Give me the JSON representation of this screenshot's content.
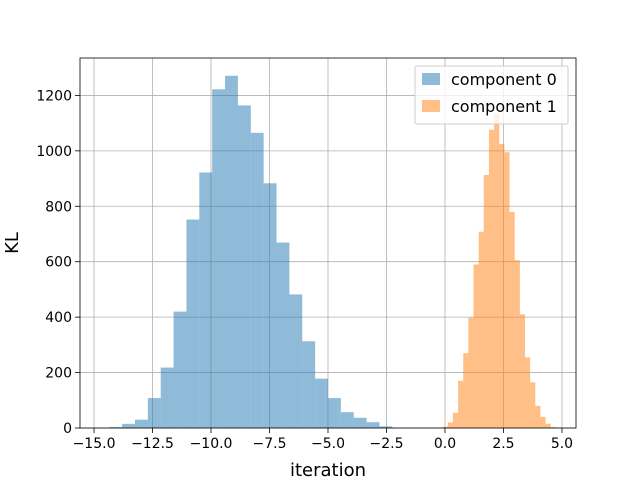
{
  "chart_data": {
    "type": "bar",
    "title": "",
    "xlabel": "iteration",
    "ylabel": "KL",
    "xlim": [
      -15.6,
      5.6
    ],
    "ylim": [
      0,
      1335
    ],
    "xticks": [
      -15.0,
      -12.5,
      -10.0,
      -7.5,
      -5.0,
      -2.5,
      0.0,
      2.5,
      5.0
    ],
    "xtick_labels": [
      "−15.0",
      "−12.5",
      "−10.0",
      "−7.5",
      "−5.0",
      "−2.5",
      "0.0",
      "2.5",
      "5.0"
    ],
    "yticks": [
      0,
      200,
      400,
      600,
      800,
      1000,
      1200
    ],
    "ytick_labels": [
      "0",
      "200",
      "400",
      "600",
      "800",
      "1000",
      "1200"
    ],
    "grid": true,
    "legend_position": "top-right",
    "series": [
      {
        "name": "component 0",
        "color": "#1f77b4",
        "alpha": 0.5,
        "bin_edges": [
          -14.35,
          -13.8,
          -13.25,
          -12.7,
          -12.15,
          -11.6,
          -11.05,
          -10.5,
          -9.95,
          -9.4,
          -8.85,
          -8.3,
          -7.75,
          -7.2,
          -6.65,
          -6.1,
          -5.55,
          -5.0,
          -4.45,
          -3.9,
          -3.35,
          -2.8,
          -2.25
        ],
        "values": [
          3,
          15,
          30,
          108,
          218,
          420,
          752,
          922,
          1222,
          1271,
          1164,
          1065,
          883,
          669,
          482,
          313,
          178,
          108,
          57,
          37,
          21,
          6
        ]
      },
      {
        "name": "component 1",
        "color": "#ff7f0e",
        "alpha": 0.5,
        "bin_edges": [
          -0.1,
          0.12,
          0.34,
          0.56,
          0.78,
          1.0,
          1.22,
          1.44,
          1.66,
          1.88,
          2.1,
          2.32,
          2.54,
          2.76,
          2.98,
          3.2,
          3.42,
          3.64,
          3.86,
          4.08,
          4.3,
          4.52,
          4.74
        ],
        "values": [
          5,
          20,
          55,
          170,
          270,
          398,
          590,
          708,
          913,
          1076,
          1135,
          1025,
          995,
          780,
          605,
          410,
          255,
          165,
          80,
          40,
          15,
          3
        ]
      }
    ]
  }
}
